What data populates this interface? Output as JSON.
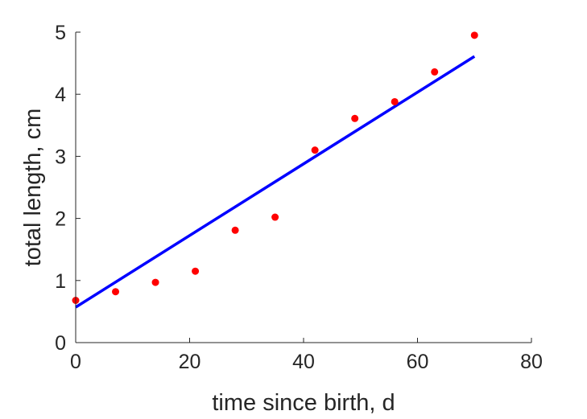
{
  "chart_data": {
    "type": "scatter",
    "title": "",
    "xlabel": "time since birth, d",
    "ylabel": "total length, cm",
    "xlim": [
      0,
      80
    ],
    "ylim": [
      0,
      5
    ],
    "xticks": [
      0,
      20,
      40,
      60,
      80
    ],
    "yticks": [
      0,
      1,
      2,
      3,
      4,
      5
    ],
    "xtick_labels": [
      "0",
      "20",
      "40",
      "60",
      "80"
    ],
    "ytick_labels": [
      "0",
      "1",
      "2",
      "3",
      "4",
      "5"
    ],
    "grid": false,
    "legend": "none",
    "series": [
      {
        "type": "scatter",
        "color": "#ff0000",
        "x": [
          0,
          7,
          14,
          21,
          28,
          35,
          42,
          49,
          56,
          63,
          70
        ],
        "y": [
          0.68,
          0.82,
          0.97,
          1.15,
          1.81,
          2.02,
          3.1,
          3.61,
          3.88,
          4.36,
          4.95
        ]
      },
      {
        "type": "line",
        "color": "#0000ff",
        "x": [
          0,
          70
        ],
        "y": [
          0.57,
          4.61
        ]
      }
    ]
  }
}
